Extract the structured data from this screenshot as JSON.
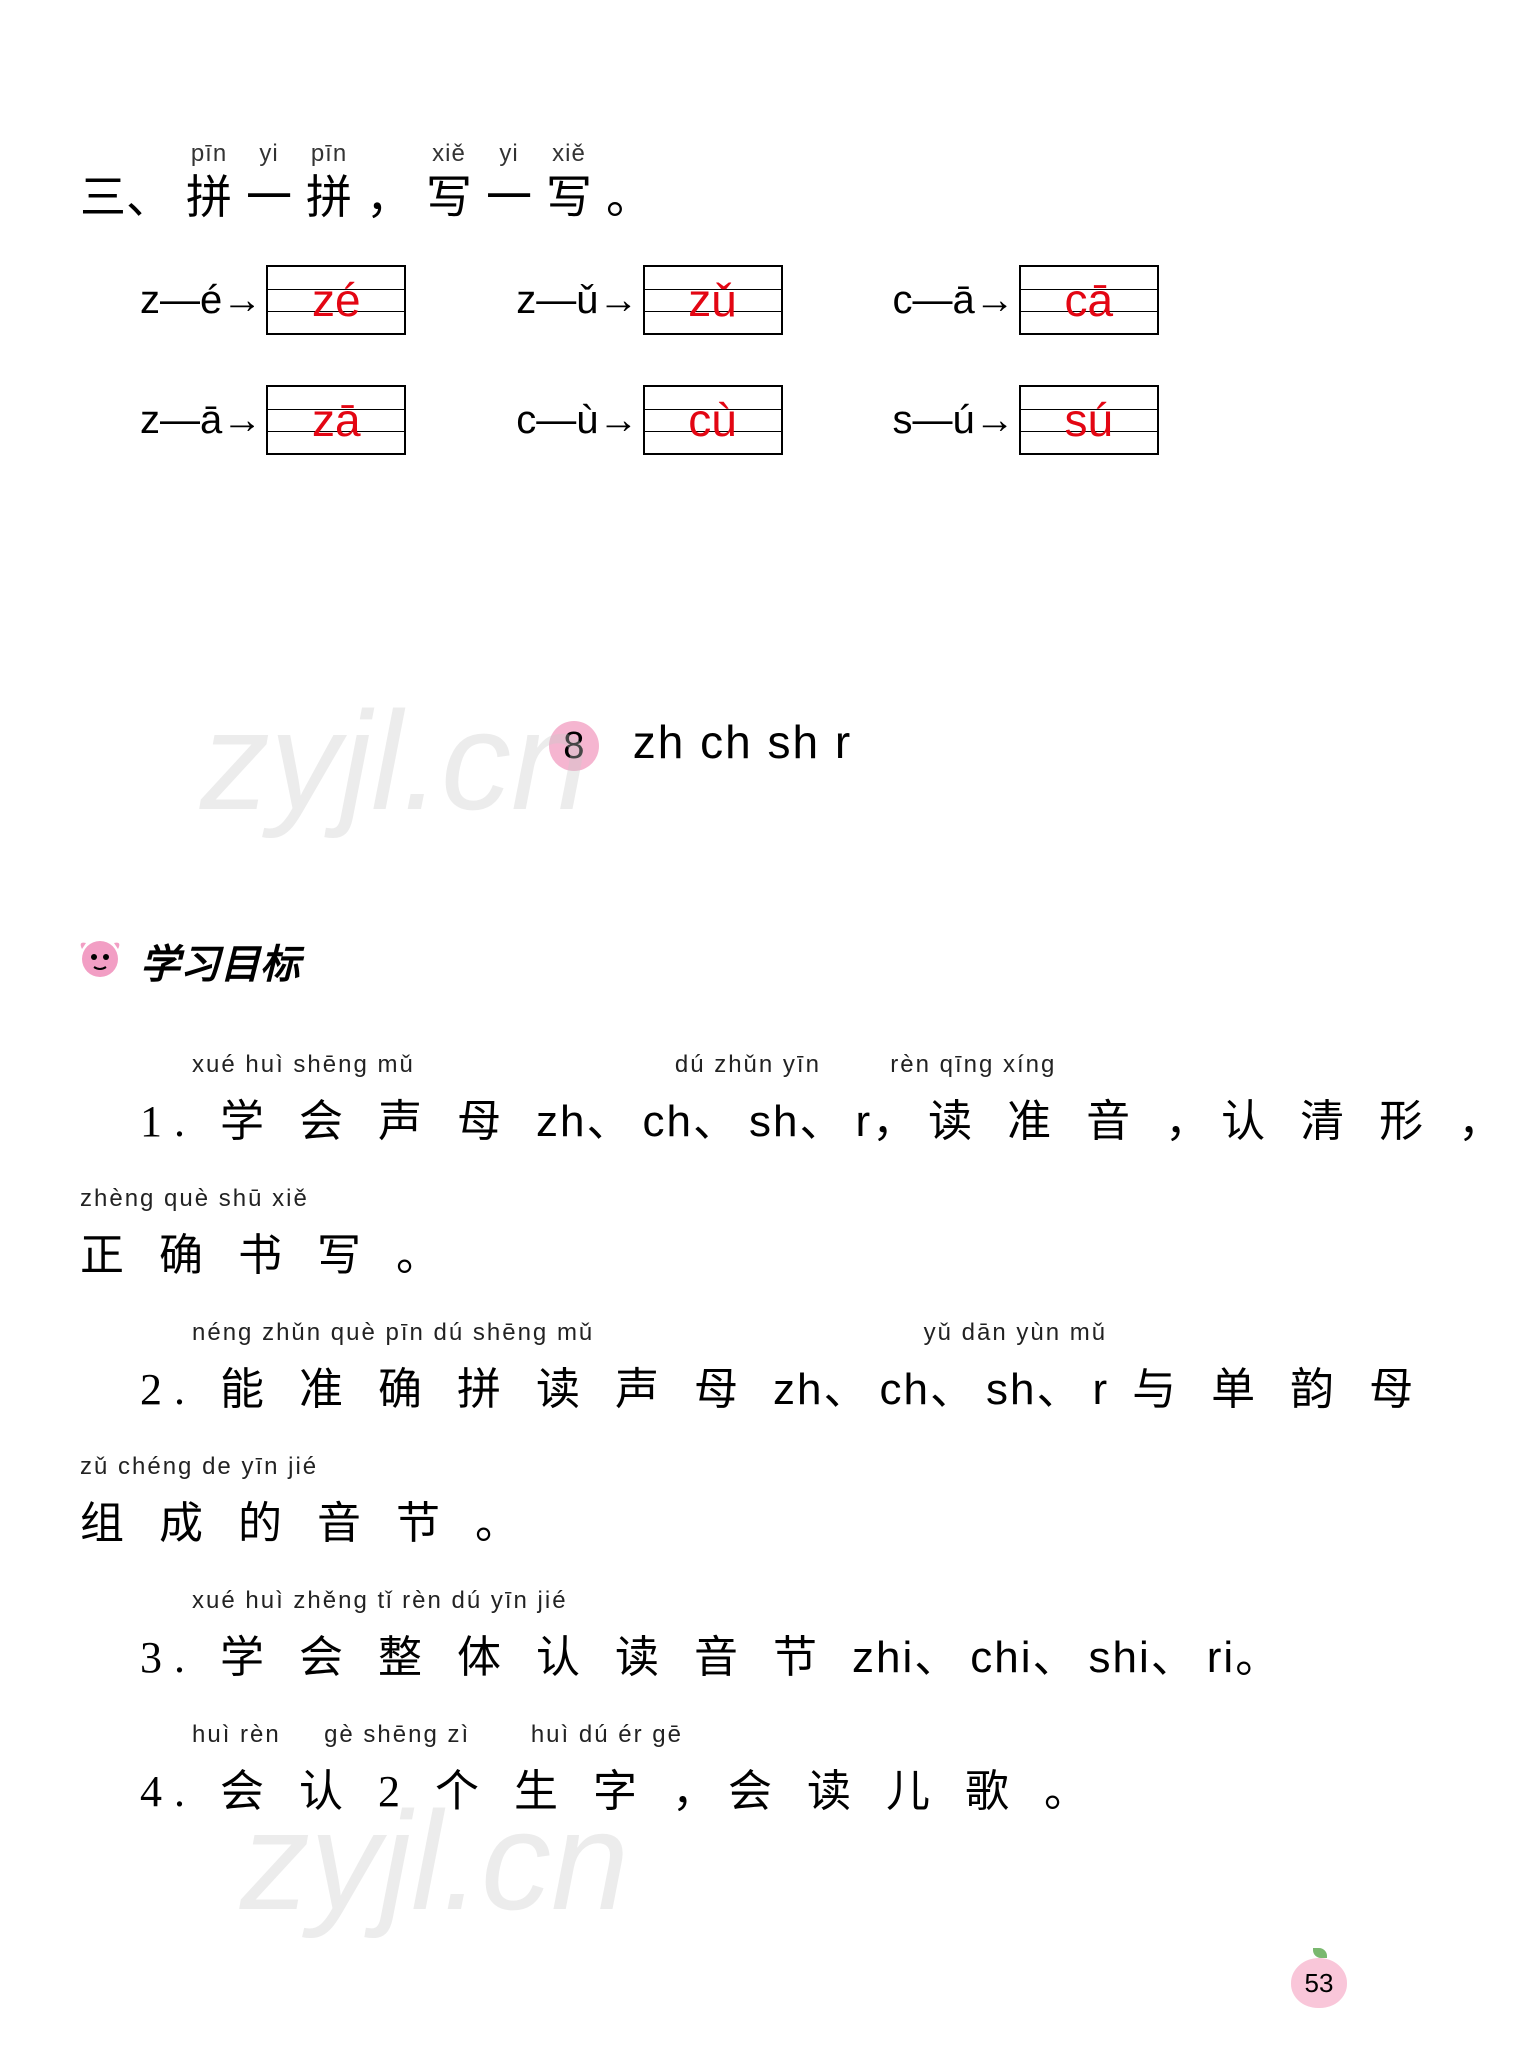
{
  "section3": {
    "heading_pinyin": [
      "pīn",
      "yi",
      "pīn",
      "",
      "xiě",
      "yi",
      "xiě"
    ],
    "heading_hanzi": [
      "三、",
      "拼",
      "一",
      "拼",
      "，",
      "写",
      "一",
      "写",
      "。"
    ],
    "rows": [
      [
        {
          "label": "z—é→",
          "answer": "zé"
        },
        {
          "label": "z—ǔ→",
          "answer": "zǔ"
        },
        {
          "label": "c—ā→",
          "answer": "cā"
        }
      ],
      [
        {
          "label": "z—ā→",
          "answer": "zā"
        },
        {
          "label": "c—ù→",
          "answer": "cù"
        },
        {
          "label": "s—ú→",
          "answer": "sú"
        }
      ]
    ]
  },
  "lesson": {
    "num": "8",
    "letters": "zh   ch   sh   r"
  },
  "goals_header": "学习目标",
  "goals": [
    {
      "lines": [
        {
          "pinyin": "      xué huì shēng mǔ                              dú zhǔn yīn        rèn qīng xíng",
          "text": "1. 学 会 声 母 zh、ch、sh、r，读 准 音 ，认 清 形 ，"
        },
        {
          "pinyin": "zhèng què shū xiě",
          "text": "正 确 书 写 。",
          "cont": true
        }
      ]
    },
    {
      "lines": [
        {
          "pinyin": "      néng zhǔn què pīn dú shēng mǔ                                      yǔ dān yùn mǔ",
          "text": "2. 能 准 确 拼 读 声 母 zh、ch、sh、r 与 单 韵 母"
        },
        {
          "pinyin": "zǔ chéng de yīn jié",
          "text": "组 成 的 音 节 。",
          "cont": true
        }
      ]
    },
    {
      "lines": [
        {
          "pinyin": "      xué huì zhěng tǐ rèn dú yīn jié",
          "text": "3. 学 会 整 体 认 读 音 节 zhi、chi、shi、ri。"
        }
      ]
    },
    {
      "lines": [
        {
          "pinyin": "      huì rèn     gè shēng zì       huì dú ér gē",
          "text": "4. 会 认 2 个 生 字 ，会 读 儿 歌 。"
        }
      ]
    }
  ],
  "watermark": "zyjl.cn",
  "page_number": "53",
  "colors": {
    "answer": "#e30613",
    "lesson_bg": "#f5b5d0",
    "apple": "#f9c6d9",
    "leaf": "#7ab86f"
  }
}
